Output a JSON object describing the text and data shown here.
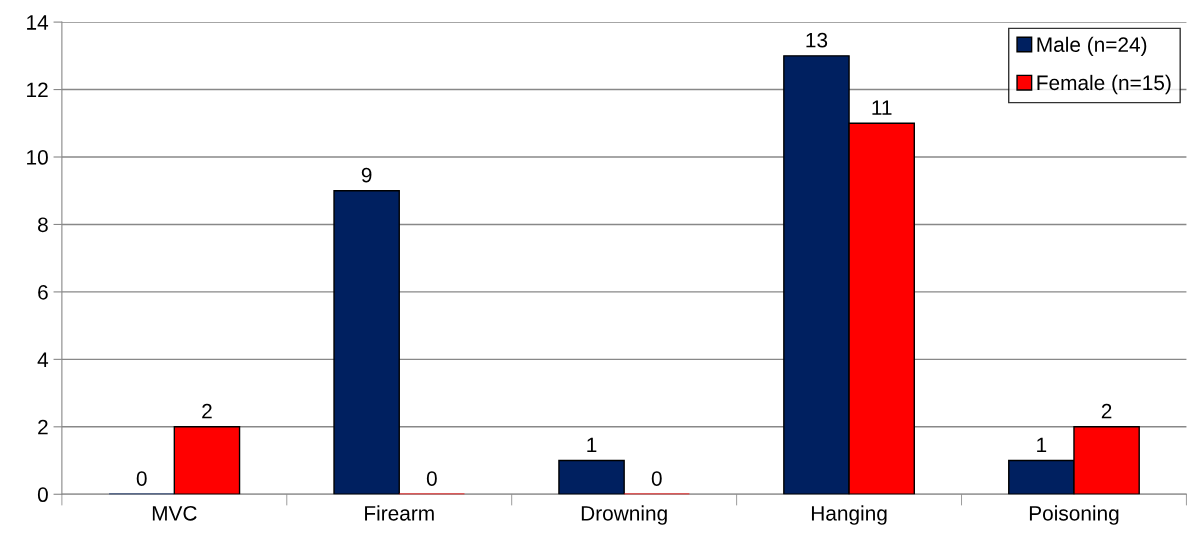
{
  "chart_data": {
    "type": "bar",
    "categories": [
      "MVC",
      "Firearm",
      "Drowning",
      "Hanging",
      "Poisoning"
    ],
    "series": [
      {
        "name": "Male (n=24)",
        "color": "#002060",
        "values": [
          0,
          9,
          1,
          13,
          1
        ]
      },
      {
        "name": "Female (n=15)",
        "color": "#ff0000",
        "values": [
          2,
          0,
          0,
          11,
          2
        ]
      }
    ],
    "ylim": [
      0,
      14
    ],
    "yticks": [
      0,
      2,
      4,
      6,
      8,
      10,
      12,
      14
    ],
    "grid": "y",
    "legend": "top right",
    "data_labels": true
  }
}
